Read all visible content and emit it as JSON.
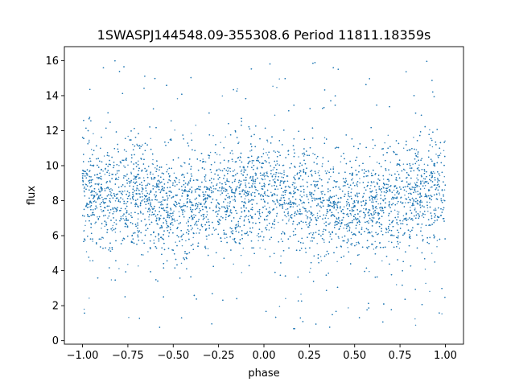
{
  "chart_data": {
    "type": "scatter",
    "title": "1SWASPJ144548.09-355308.6 Period 11811.18359s",
    "xlabel": "phase",
    "ylabel": "flux",
    "xlim": [
      -1.1,
      1.1
    ],
    "ylim": [
      -0.2,
      16.8
    ],
    "xticks": [
      -1.0,
      -0.75,
      -0.5,
      -0.25,
      0.0,
      0.25,
      0.5,
      0.75,
      1.0
    ],
    "xtick_labels": [
      "−1.00",
      "−0.75",
      "−0.50",
      "−0.25",
      "0.00",
      "0.25",
      "0.50",
      "0.75",
      "1.00"
    ],
    "yticks": [
      0,
      2,
      4,
      6,
      8,
      10,
      12,
      14,
      16
    ],
    "ytick_labels": [
      "0",
      "2",
      "4",
      "6",
      "8",
      "10",
      "12",
      "14",
      "16"
    ],
    "grid": false,
    "legend": "none",
    "marker_color": "#1f77b4",
    "series": [
      {
        "x_range": [
          -1.0,
          1.0
        ],
        "y_range": [
          0.5,
          16.0
        ],
        "phase_profile": {
          "phase": [
            -1.0,
            -0.75,
            -0.5,
            -0.25,
            0.0,
            0.25,
            0.5,
            0.75,
            1.0
          ],
          "mean_flux": [
            8.4,
            8.3,
            7.6,
            8.1,
            8.6,
            8.0,
            7.5,
            8.2,
            8.5
          ]
        },
        "typical_scatter": 1.5
      }
    ]
  }
}
